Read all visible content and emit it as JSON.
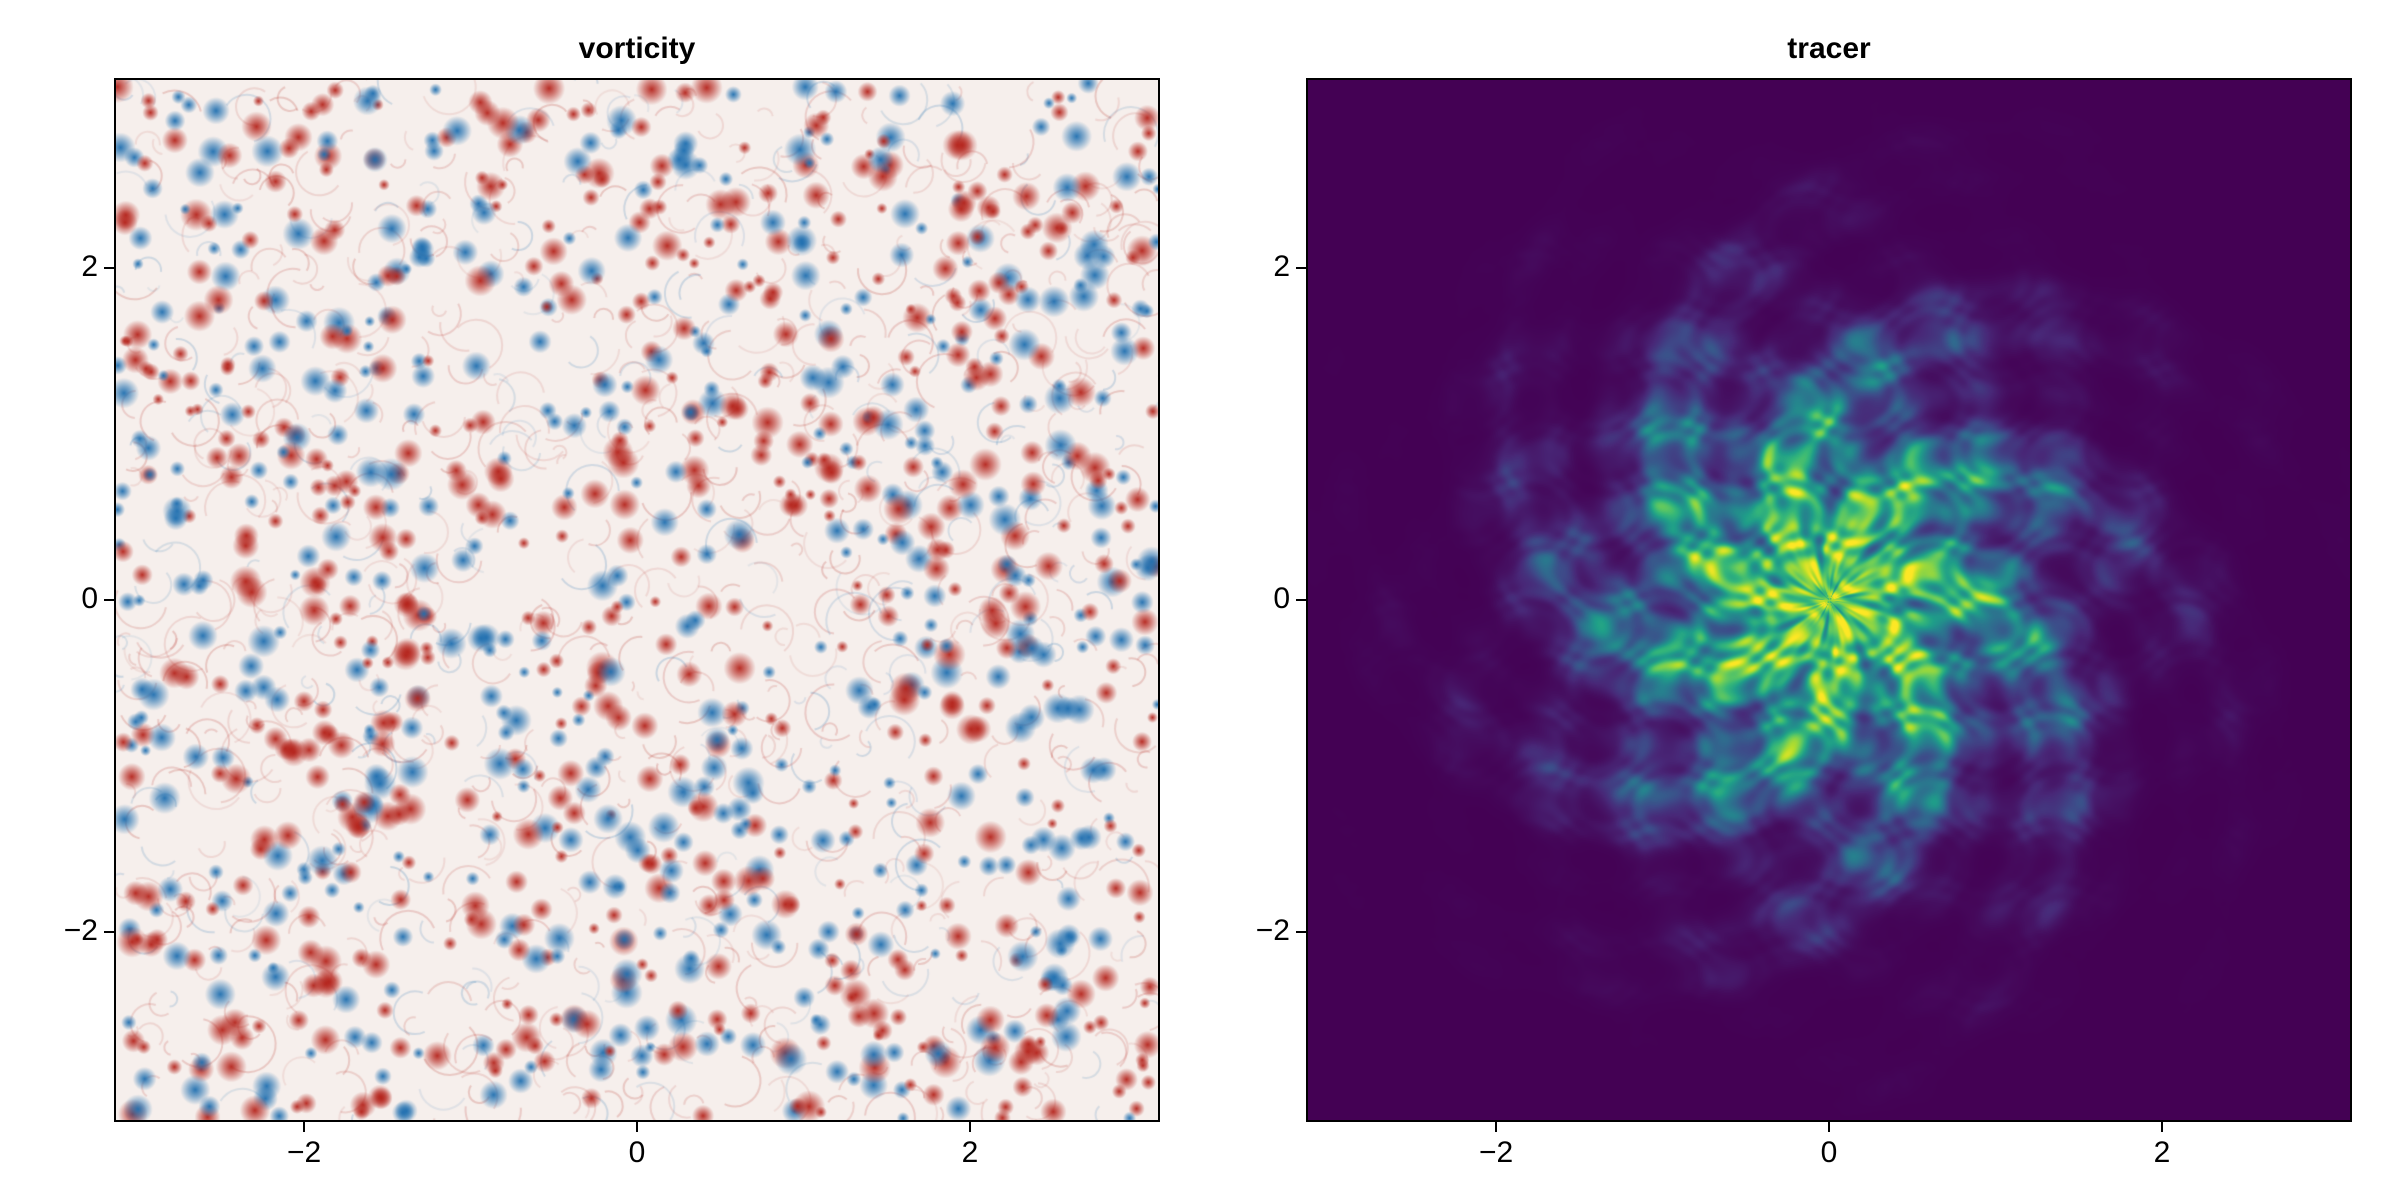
{
  "chart_data": [
    {
      "type": "heatmap",
      "title": "vorticity",
      "xlabel": "",
      "ylabel": "",
      "xlim": [
        -3.14159,
        3.14159
      ],
      "ylim": [
        -3.14159,
        3.14159
      ],
      "x_ticks": [
        -2,
        0,
        2
      ],
      "y_ticks": [
        -2,
        0,
        2
      ],
      "x_tick_labels": [
        "−2",
        "0",
        "2"
      ],
      "y_tick_labels": [
        "−2",
        "0",
        "2"
      ],
      "colormap": "balance",
      "colors": {
        "negative": "#1f6fb0",
        "zero": "#f6efec",
        "positive": "#b5241c"
      },
      "field_description": "many small positive (red) and negative (blue) vortices scattered uniformly over the domain",
      "grid": false
    },
    {
      "type": "heatmap",
      "title": "tracer",
      "xlabel": "",
      "ylabel": "",
      "xlim": [
        -3.14159,
        3.14159
      ],
      "ylim": [
        -3.14159,
        3.14159
      ],
      "x_ticks": [
        -2,
        0,
        2
      ],
      "y_ticks": [
        -2,
        0,
        2
      ],
      "x_tick_labels": [
        "−2",
        "0",
        "2"
      ],
      "y_tick_labels": [
        "−2",
        "0",
        "2"
      ],
      "colormap": "viridis",
      "colors": {
        "low": "#440154",
        "high": "#fde725"
      },
      "field_description": "filamented tracer blob centred near (0, 0) with radius about 1.8, peak values near the centre",
      "blob_center": [
        0.0,
        0.0
      ],
      "blob_radius": 1.8,
      "grid": false
    }
  ]
}
